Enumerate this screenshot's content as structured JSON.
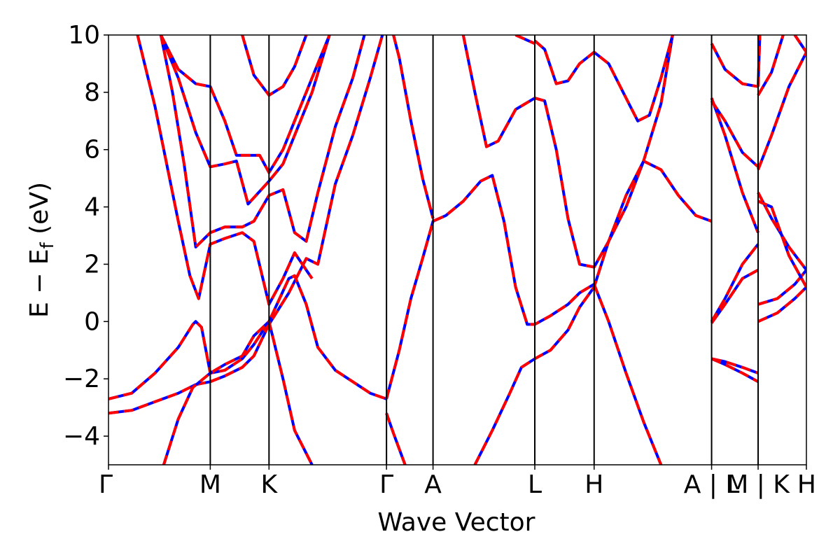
{
  "chart_data": {
    "type": "line",
    "title": "",
    "xlabel": "Wave Vector",
    "ylabel": "E − E",
    "ylabel_subscript": "f",
    "ylabel_unit": "(eV)",
    "ylim": [
      -5,
      10
    ],
    "y_ticks": [
      {
        "value": -4,
        "label": "−4"
      },
      {
        "value": -2,
        "label": "−2"
      },
      {
        "value": 0,
        "label": "0"
      },
      {
        "value": 2,
        "label": "2"
      },
      {
        "value": 4,
        "label": "4"
      },
      {
        "value": 6,
        "label": "6"
      },
      {
        "value": 8,
        "label": "8"
      },
      {
        "value": 10,
        "label": "10"
      }
    ],
    "xlim": [
      0,
      12
    ],
    "k_points": [
      {
        "x": 0,
        "label": "Γ"
      },
      {
        "x": 1.75,
        "label": "M"
      },
      {
        "x": 2.76,
        "label": "K"
      },
      {
        "x": 4.78,
        "label": "Γ"
      },
      {
        "x": 5.58,
        "label": "A"
      },
      {
        "x": 7.33,
        "label": "L"
      },
      {
        "x": 8.35,
        "label": "H"
      },
      {
        "x": 10.37,
        "label": "A | L"
      },
      {
        "x": 11.17,
        "label": "M | K"
      },
      {
        "x": 12.0,
        "label": "H"
      }
    ],
    "grid": false,
    "legend": "none",
    "series_styles": [
      {
        "color": "#0000ff",
        "dash": "none"
      },
      {
        "color": "#ff0000",
        "dash": "dashed"
      }
    ],
    "series": [
      {
        "values": [
          [
            0,
            -3.2
          ],
          [
            0.4,
            -3.1
          ],
          [
            0.8,
            -2.8
          ],
          [
            1.2,
            -2.5
          ],
          [
            1.5,
            -2.2
          ],
          [
            1.75,
            -2.1
          ],
          [
            2.0,
            -1.9
          ],
          [
            2.3,
            -1.6
          ],
          [
            2.5,
            -1.2
          ],
          [
            2.76,
            -0.1
          ],
          [
            3.1,
            1.0
          ],
          [
            3.4,
            2.2
          ],
          [
            3.6,
            2.0
          ],
          [
            3.9,
            4.8
          ],
          [
            4.2,
            6.5
          ],
          [
            4.5,
            8.5
          ],
          [
            4.78,
            10.5
          ]
        ]
      },
      {
        "values": [
          [
            0,
            -2.7
          ],
          [
            0.4,
            -2.5
          ],
          [
            0.8,
            -1.8
          ],
          [
            1.2,
            -0.9
          ],
          [
            1.45,
            -0.1
          ],
          [
            1.5,
            0.0
          ],
          [
            1.6,
            -0.2
          ],
          [
            1.75,
            -1.8
          ],
          [
            2.0,
            -1.7
          ],
          [
            2.3,
            -1.3
          ],
          [
            2.5,
            -0.8
          ],
          [
            2.76,
            0.0
          ],
          [
            3.1,
            1.5
          ],
          [
            3.2,
            1.6
          ],
          [
            3.4,
            0.6
          ],
          [
            3.6,
            -0.9
          ],
          [
            3.9,
            -1.7
          ],
          [
            4.2,
            -2.1
          ],
          [
            4.5,
            -2.5
          ],
          [
            4.78,
            -2.7
          ]
        ]
      },
      {
        "values": [
          [
            0.95,
            -5.0
          ],
          [
            1.2,
            -3.4
          ],
          [
            1.45,
            -2.3
          ],
          [
            1.75,
            -1.8
          ],
          [
            2.0,
            -1.5
          ],
          [
            2.3,
            -1.2
          ],
          [
            2.5,
            -0.5
          ],
          [
            2.76,
            0.0
          ],
          [
            3.0,
            -2.0
          ],
          [
            3.2,
            -3.8
          ],
          [
            3.5,
            -5.0
          ]
        ]
      },
      {
        "values": [
          [
            0.5,
            10.0
          ],
          [
            0.8,
            7.5
          ],
          [
            1.0,
            5.5
          ],
          [
            1.2,
            3.5
          ],
          [
            1.4,
            1.6
          ],
          [
            1.55,
            0.8
          ],
          [
            1.75,
            2.7
          ],
          [
            2.0,
            2.9
          ],
          [
            2.3,
            3.1
          ],
          [
            2.5,
            2.8
          ],
          [
            2.76,
            0.6
          ],
          [
            3.0,
            1.5
          ],
          [
            3.2,
            2.4
          ],
          [
            3.4,
            1.8
          ],
          [
            3.5,
            1.5
          ]
        ]
      },
      {
        "values": [
          [
            0.9,
            10.0
          ],
          [
            1.1,
            8.0
          ],
          [
            1.3,
            5.5
          ],
          [
            1.5,
            2.6
          ],
          [
            1.75,
            3.1
          ],
          [
            2.0,
            3.3
          ],
          [
            2.3,
            3.3
          ],
          [
            2.5,
            3.5
          ],
          [
            2.76,
            4.4
          ],
          [
            3.0,
            4.6
          ],
          [
            3.2,
            3.1
          ],
          [
            3.4,
            2.8
          ],
          [
            3.6,
            4.5
          ],
          [
            3.9,
            6.8
          ],
          [
            4.2,
            8.5
          ],
          [
            4.4,
            10.0
          ]
        ]
      },
      {
        "values": [
          [
            0.9,
            10.0
          ],
          [
            1.2,
            8.5
          ],
          [
            1.5,
            6.6
          ],
          [
            1.75,
            5.4
          ],
          [
            2.0,
            5.5
          ],
          [
            2.2,
            5.6
          ],
          [
            2.4,
            4.1
          ],
          [
            2.76,
            4.9
          ],
          [
            3.0,
            5.5
          ],
          [
            3.2,
            6.5
          ],
          [
            3.5,
            8.0
          ],
          [
            3.8,
            10.0
          ]
        ]
      },
      {
        "values": [
          [
            0.9,
            10.0
          ],
          [
            1.2,
            8.8
          ],
          [
            1.5,
            8.3
          ],
          [
            1.75,
            8.2
          ],
          [
            2.0,
            7.0
          ],
          [
            2.2,
            5.8
          ],
          [
            2.4,
            5.8
          ],
          [
            2.6,
            5.8
          ],
          [
            2.76,
            5.2
          ],
          [
            3.0,
            6.0
          ],
          [
            3.3,
            7.5
          ],
          [
            3.6,
            9.0
          ],
          [
            3.8,
            10.0
          ]
        ]
      },
      {
        "values": [
          [
            2.3,
            10.0
          ],
          [
            2.5,
            8.6
          ],
          [
            2.76,
            7.9
          ],
          [
            3.0,
            8.2
          ],
          [
            3.2,
            8.9
          ],
          [
            3.4,
            10.0
          ]
        ]
      },
      {
        "values": [
          [
            4.78,
            -3.2
          ],
          [
            4.9,
            -3.9
          ],
          [
            5.1,
            -5.0
          ]
        ]
      },
      {
        "values": [
          [
            4.78,
            -2.7
          ],
          [
            5.0,
            -1.0
          ],
          [
            5.2,
            0.8
          ],
          [
            5.4,
            2.2
          ],
          [
            5.58,
            3.5
          ],
          [
            5.8,
            3.7
          ],
          [
            6.1,
            4.2
          ],
          [
            6.4,
            4.9
          ],
          [
            6.6,
            5.1
          ],
          [
            6.8,
            3.5
          ],
          [
            7.0,
            1.2
          ],
          [
            7.2,
            -0.1
          ],
          [
            7.33,
            -0.1
          ],
          [
            7.6,
            0.2
          ],
          [
            7.9,
            0.6
          ],
          [
            8.1,
            1.0
          ],
          [
            8.35,
            1.3
          ],
          [
            8.6,
            0.0
          ],
          [
            8.9,
            -1.8
          ],
          [
            9.2,
            -3.5
          ],
          [
            9.5,
            -5.0
          ]
        ]
      },
      {
        "values": [
          [
            4.78,
            10.5
          ],
          [
            4.9,
            10.0
          ],
          [
            5.0,
            9.2
          ],
          [
            5.2,
            7.0
          ],
          [
            5.4,
            5.0
          ],
          [
            5.58,
            3.6
          ]
        ]
      },
      {
        "values": [
          [
            6.1,
            10.0
          ],
          [
            6.3,
            8.0
          ],
          [
            6.5,
            6.1
          ],
          [
            6.7,
            6.3
          ],
          [
            7.0,
            7.4
          ],
          [
            7.33,
            7.8
          ],
          [
            7.5,
            7.7
          ],
          [
            7.7,
            6.0
          ],
          [
            7.9,
            3.6
          ],
          [
            8.1,
            2.0
          ],
          [
            8.35,
            1.9
          ],
          [
            8.6,
            2.8
          ],
          [
            8.9,
            4.0
          ],
          [
            9.2,
            5.6
          ],
          [
            9.5,
            5.3
          ],
          [
            9.8,
            4.4
          ],
          [
            10.1,
            3.7
          ],
          [
            10.37,
            3.5
          ]
        ]
      },
      {
        "values": [
          [
            6.3,
            -5.0
          ],
          [
            6.6,
            -3.8
          ],
          [
            6.9,
            -2.5
          ],
          [
            7.1,
            -1.6
          ],
          [
            7.33,
            -1.3
          ],
          [
            7.6,
            -1.0
          ],
          [
            7.9,
            -0.3
          ],
          [
            8.1,
            0.5
          ],
          [
            8.35,
            1.2
          ],
          [
            8.6,
            2.8
          ],
          [
            8.9,
            4.4
          ],
          [
            9.2,
            5.6
          ],
          [
            9.5,
            7.6
          ],
          [
            9.7,
            10.0
          ]
        ]
      },
      {
        "values": [
          [
            7.33,
            9.8
          ],
          [
            7.5,
            9.5
          ],
          [
            7.7,
            8.3
          ],
          [
            7.9,
            8.4
          ],
          [
            8.1,
            9.0
          ],
          [
            8.35,
            9.4
          ],
          [
            8.6,
            9.0
          ],
          [
            8.9,
            7.8
          ],
          [
            9.1,
            7.0
          ],
          [
            9.3,
            7.2
          ],
          [
            9.5,
            8.5
          ],
          [
            9.7,
            10.0
          ]
        ]
      },
      {
        "values": [
          [
            7.0,
            10.0
          ],
          [
            7.33,
            9.7
          ]
        ]
      },
      {
        "values": [
          [
            10.37,
            -0.05
          ],
          [
            10.6,
            0.6
          ],
          [
            10.9,
            1.5
          ],
          [
            11.17,
            1.8
          ]
        ]
      },
      {
        "values": [
          [
            10.37,
            -1.3
          ],
          [
            10.6,
            -1.5
          ],
          [
            10.9,
            -1.8
          ],
          [
            11.17,
            -2.1
          ]
        ]
      },
      {
        "values": [
          [
            10.37,
            -1.3
          ],
          [
            10.6,
            -1.4
          ],
          [
            10.9,
            -1.6
          ],
          [
            11.17,
            -1.8
          ]
        ]
      },
      {
        "values": [
          [
            10.37,
            7.8
          ],
          [
            10.6,
            6.5
          ],
          [
            10.9,
            4.5
          ],
          [
            11.17,
            3.1
          ]
        ]
      },
      {
        "values": [
          [
            10.37,
            7.7
          ],
          [
            10.6,
            7.0
          ],
          [
            10.9,
            5.9
          ],
          [
            11.17,
            5.4
          ]
        ]
      },
      {
        "values": [
          [
            10.37,
            9.7
          ],
          [
            10.6,
            8.8
          ],
          [
            10.9,
            8.3
          ],
          [
            11.17,
            8.2
          ]
        ]
      },
      {
        "values": [
          [
            10.37,
            0.0
          ],
          [
            10.6,
            0.8
          ],
          [
            10.9,
            2.0
          ],
          [
            11.17,
            2.7
          ]
        ]
      },
      {
        "values": [
          [
            11.17,
            0.6
          ],
          [
            11.5,
            0.8
          ],
          [
            11.8,
            1.3
          ],
          [
            12.0,
            1.8
          ]
        ]
      },
      {
        "values": [
          [
            11.17,
            0.0
          ],
          [
            11.5,
            0.3
          ],
          [
            11.8,
            0.8
          ],
          [
            12.0,
            1.2
          ]
        ]
      },
      {
        "values": [
          [
            11.17,
            4.5
          ],
          [
            11.4,
            3.6
          ],
          [
            11.7,
            2.6
          ],
          [
            12.0,
            1.8
          ]
        ]
      },
      {
        "values": [
          [
            11.17,
            4.2
          ],
          [
            11.4,
            4.0
          ],
          [
            11.7,
            2.3
          ],
          [
            12.0,
            1.2
          ]
        ]
      },
      {
        "values": [
          [
            11.17,
            5.3
          ],
          [
            11.4,
            6.5
          ],
          [
            11.7,
            8.2
          ],
          [
            12.0,
            9.4
          ]
        ]
      },
      {
        "values": [
          [
            11.17,
            7.9
          ],
          [
            11.4,
            8.7
          ],
          [
            11.6,
            10.0
          ]
        ]
      },
      {
        "values": [
          [
            11.17,
            8.2
          ],
          [
            11.2,
            10.0
          ]
        ]
      },
      {
        "values": [
          [
            11.8,
            10.0
          ],
          [
            12.0,
            9.4
          ]
        ]
      }
    ]
  }
}
